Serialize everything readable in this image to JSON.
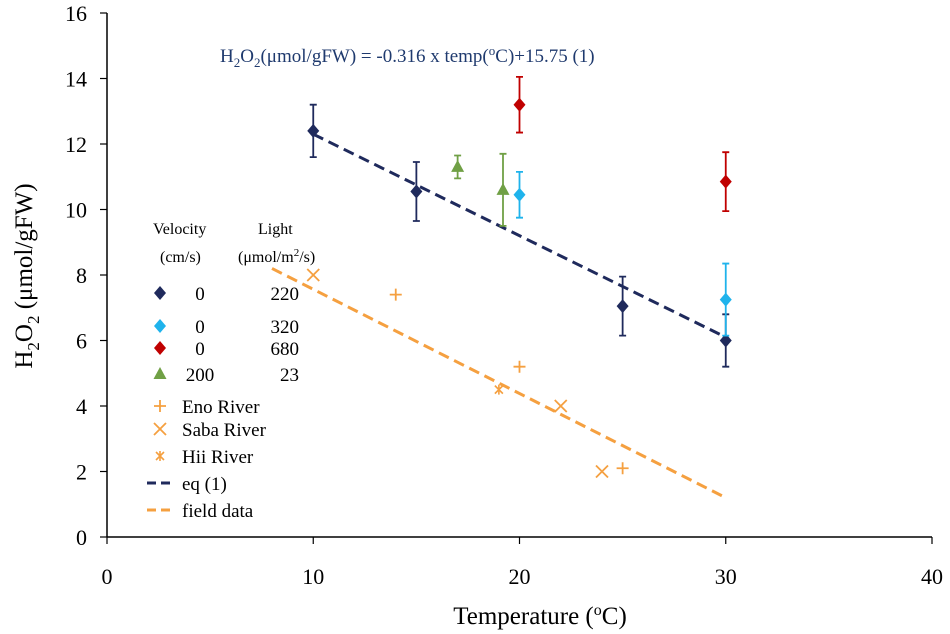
{
  "chart_data": {
    "type": "scatter",
    "title": "",
    "xlabel": "Temperature  (°C)",
    "xlabel_parts": {
      "main": "Temperature  (",
      "sup": "o",
      "end": "C)"
    },
    "ylabel_parts": {
      "a": "H",
      "sub1": "2",
      "b": "O",
      "sub2": "2",
      "c": " (μmol/gFW)"
    },
    "xlim": [
      0,
      40
    ],
    "ylim": [
      0,
      16
    ],
    "xticks": [
      0,
      10,
      20,
      30,
      40
    ],
    "yticks": [
      0,
      2,
      4,
      6,
      8,
      10,
      12,
      14,
      16
    ],
    "xtick_labels": [
      "0",
      "10",
      "20",
      "30",
      "40"
    ],
    "ytick_labels": [
      "0",
      "2",
      "4",
      "6",
      "8",
      "10",
      "12",
      "14",
      "16"
    ],
    "grid": false,
    "equation": {
      "parts": [
        "H",
        "2",
        "O",
        "2",
        "(μmol/gFW) = -0.316 x temp(",
        "o",
        "C)+15.75  (1)"
      ],
      "color": "#1f3a6e"
    },
    "legend_header": {
      "velocity": "Velocity",
      "velocity_unit": "(cm/s)",
      "light": "Light",
      "light_unit_a": "(μmol/m",
      "light_unit_sup": "2",
      "light_unit_b": "/s)"
    },
    "legend": [
      {
        "label_a": "0",
        "label_b": "220",
        "marker": "diamond",
        "color": "#1f2a5c"
      },
      {
        "label_a": "0",
        "label_b": "320",
        "marker": "diamond",
        "color": "#1fb3ec"
      },
      {
        "label_a": "0",
        "label_b": "680",
        "marker": "diamond",
        "color": "#c00000"
      },
      {
        "label_a": "200",
        "label_b": "23",
        "marker": "triangle",
        "color": "#70a045"
      },
      {
        "label_a": "Eno River",
        "marker": "plus",
        "color": "#f5a040"
      },
      {
        "label_a": "Saba River",
        "marker": "x",
        "color": "#f5a040"
      },
      {
        "label_a": "Hii River",
        "marker": "star",
        "color": "#f5a040"
      },
      {
        "label_a": "eq (1)",
        "marker": "dash",
        "color": "#1f2a5c"
      },
      {
        "label_a": "field data",
        "marker": "dash",
        "color": "#f5a040"
      }
    ],
    "series": [
      {
        "name": "0 cm/s, 220 μmol/m2/s",
        "marker": "diamond",
        "color": "#1f2a5c",
        "points": [
          [
            10,
            12.4,
            0.8
          ],
          [
            15,
            10.55,
            0.9
          ],
          [
            25,
            7.05,
            0.9
          ],
          [
            30,
            6.0,
            0.8
          ]
        ]
      },
      {
        "name": "0 cm/s, 320 μmol/m2/s",
        "marker": "diamond",
        "color": "#1fb3ec",
        "points": [
          [
            20,
            10.45,
            0.7
          ],
          [
            30,
            7.25,
            1.1
          ]
        ]
      },
      {
        "name": "0 cm/s, 680 μmol/m2/s",
        "marker": "diamond",
        "color": "#c00000",
        "points": [
          [
            20,
            13.2,
            0.85
          ],
          [
            30,
            10.85,
            0.9
          ]
        ]
      },
      {
        "name": "200 cm/s, 23 μmol/m2/s",
        "marker": "triangle",
        "color": "#70a045",
        "points": [
          [
            17,
            11.3,
            0.35
          ],
          [
            19.2,
            10.6,
            1.1
          ]
        ]
      },
      {
        "name": "Eno River",
        "marker": "plus",
        "color": "#f5a040",
        "points": [
          [
            14,
            7.4
          ],
          [
            20,
            5.2
          ],
          [
            25,
            2.1
          ]
        ]
      },
      {
        "name": "Saba River",
        "marker": "x",
        "color": "#f5a040",
        "points": [
          [
            10,
            8.0
          ],
          [
            22,
            4.0
          ],
          [
            24,
            2.0
          ]
        ]
      },
      {
        "name": "Hii River",
        "marker": "star",
        "color": "#f5a040",
        "points": [
          [
            19,
            4.5
          ]
        ]
      }
    ],
    "lines": [
      {
        "name": "eq (1)",
        "style": "dashed",
        "color": "#1f2a5c",
        "x": [
          10,
          30
        ],
        "y": [
          12.3,
          6.1
        ]
      },
      {
        "name": "field data",
        "style": "dashed",
        "color": "#f5a040",
        "x": [
          8,
          30
        ],
        "y": [
          8.2,
          1.2
        ]
      }
    ]
  }
}
